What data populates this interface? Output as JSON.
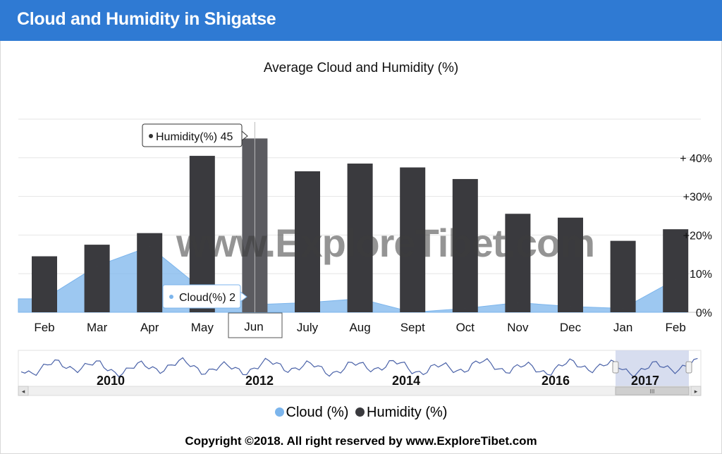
{
  "header": {
    "title": "Cloud and Humidity in Shigatse"
  },
  "watermark": "www.ExploreTibet.com",
  "tooltips": {
    "humidity": "Humidity(%) 45",
    "cloud": "Cloud(%) 2",
    "x_label": "Jun"
  },
  "navigator": {
    "years": [
      "2010",
      "2012",
      "2014",
      "2016",
      "2017"
    ],
    "scroll_left": "◂",
    "scroll_right": "▸",
    "grip": "III"
  },
  "legend": {
    "cloud": "Cloud (%)",
    "humidity": "Humidity (%)"
  },
  "copyright": "Copyright ©2018.  All right reserved by www.ExploreTibet.com",
  "colors": {
    "header": "#2f7ad3",
    "humidity": "#3a3a3e",
    "humidity_highlight": "#5b5b60",
    "cloud": "#7cb5ec"
  },
  "chart_data": {
    "type": "bar",
    "title": "Average Cloud and Humidity (%)",
    "categories": [
      "Feb",
      "Mar",
      "Apr",
      "May",
      "Jun",
      "July",
      "Aug",
      "Sept",
      "Oct",
      "Nov",
      "Dec",
      "Jan",
      "Feb"
    ],
    "series": [
      {
        "name": "Humidity (%)",
        "type": "bar",
        "values": [
          14.5,
          17.5,
          20.5,
          40.5,
          45,
          36.5,
          38.5,
          37.5,
          34.5,
          25.5,
          24.5,
          18.5,
          21.5
        ]
      },
      {
        "name": "Cloud (%)",
        "type": "area",
        "values": [
          3.5,
          12,
          17,
          6,
          2,
          2.5,
          3.5,
          0,
          1,
          2.5,
          1.5,
          1,
          8.5
        ]
      }
    ],
    "y_axis": {
      "position": "right",
      "ticks": [
        0,
        10,
        20,
        30,
        40
      ],
      "tick_labels": [
        "0%",
        "10%",
        "+20%",
        "+30%",
        "+ 40%"
      ],
      "ylim": [
        0,
        50
      ]
    },
    "highlighted_category": "Jun",
    "legend_position": "bottom-center",
    "grid": true
  }
}
